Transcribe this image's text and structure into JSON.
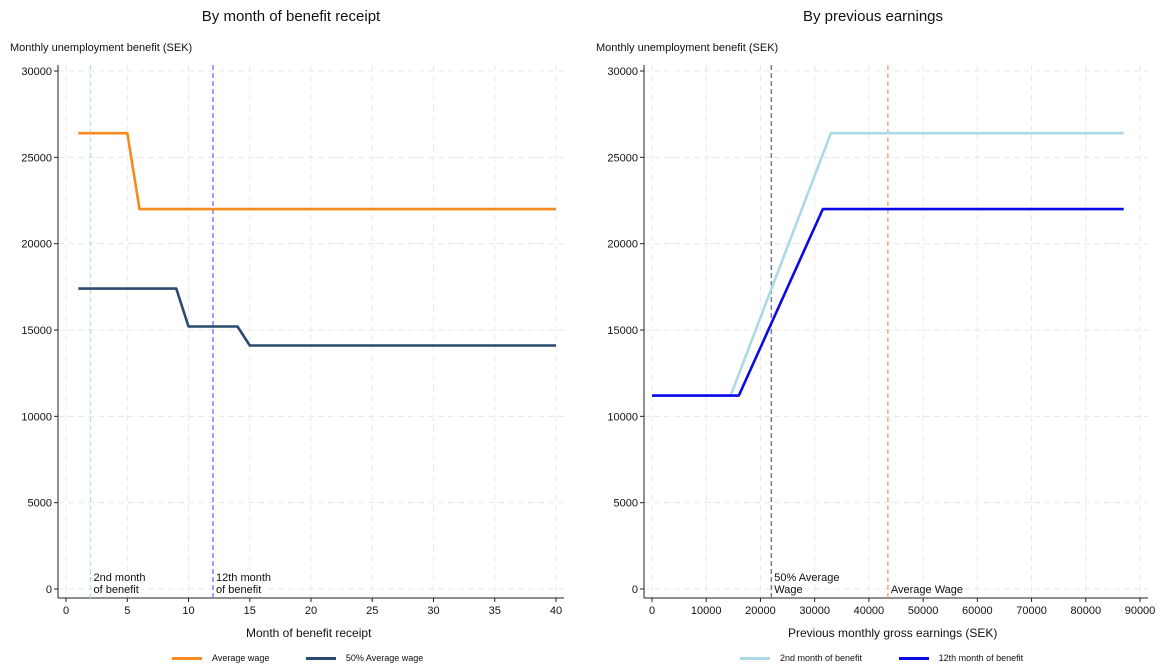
{
  "chart_data": [
    {
      "type": "line",
      "title": "By month of benefit receipt",
      "ylabel": "Monthly unemployment benefit (SEK)",
      "xlabel": "Month of benefit receipt",
      "xlim": [
        0,
        40
      ],
      "ylim": [
        0,
        30000
      ],
      "xticks": [
        0,
        5,
        10,
        15,
        20,
        25,
        30,
        35,
        40
      ],
      "yticks": [
        0,
        5000,
        10000,
        15000,
        20000,
        25000,
        30000
      ],
      "grid": true,
      "legend_position": "bottom",
      "series": [
        {
          "name": "Average wage",
          "color": "#F58A1F",
          "x": [
            1,
            5,
            6,
            40
          ],
          "y": [
            26400,
            26400,
            22000,
            22000
          ]
        },
        {
          "name": "50% Average wage",
          "color": "#2B4A6F",
          "x": [
            1,
            9,
            10,
            14,
            15,
            40
          ],
          "y": [
            17400,
            17400,
            15200,
            15200,
            14100,
            14100
          ]
        }
      ],
      "vlines": [
        {
          "x": 2,
          "color": "#B7DCE6",
          "label_lines": [
            "2nd month",
            "of benefit"
          ]
        },
        {
          "x": 12,
          "color": "#6F6FF0",
          "label_lines": [
            "12th month",
            "of benefit"
          ]
        }
      ]
    },
    {
      "type": "line",
      "title": "By previous earnings",
      "ylabel": "Monthly unemployment benefit (SEK)",
      "xlabel": "Previous monthly gross earnings (SEK)",
      "xlim": [
        0,
        90000
      ],
      "ylim": [
        0,
        30000
      ],
      "xticks": [
        0,
        10000,
        20000,
        30000,
        40000,
        50000,
        60000,
        70000,
        80000,
        90000
      ],
      "yticks": [
        0,
        5000,
        10000,
        15000,
        20000,
        25000,
        30000
      ],
      "grid": true,
      "legend_position": "bottom",
      "series": [
        {
          "name": "2nd month of benefit",
          "color": "#ADD8E6",
          "x": [
            0,
            14500,
            33000,
            87000
          ],
          "y": [
            11200,
            11200,
            26400,
            26400
          ]
        },
        {
          "name": "12th month of benefit",
          "color": "#0A0AE6",
          "x": [
            0,
            16000,
            31500,
            87000
          ],
          "y": [
            11200,
            11200,
            22000,
            22000
          ]
        }
      ],
      "vlines": [
        {
          "x": 22000,
          "color": "#5B6FA8",
          "label_lines": [
            "50% Average",
            "Wage"
          ]
        },
        {
          "x": 43500,
          "color": "#F2A25C",
          "label_lines": [
            "Average Wage"
          ]
        }
      ]
    }
  ]
}
